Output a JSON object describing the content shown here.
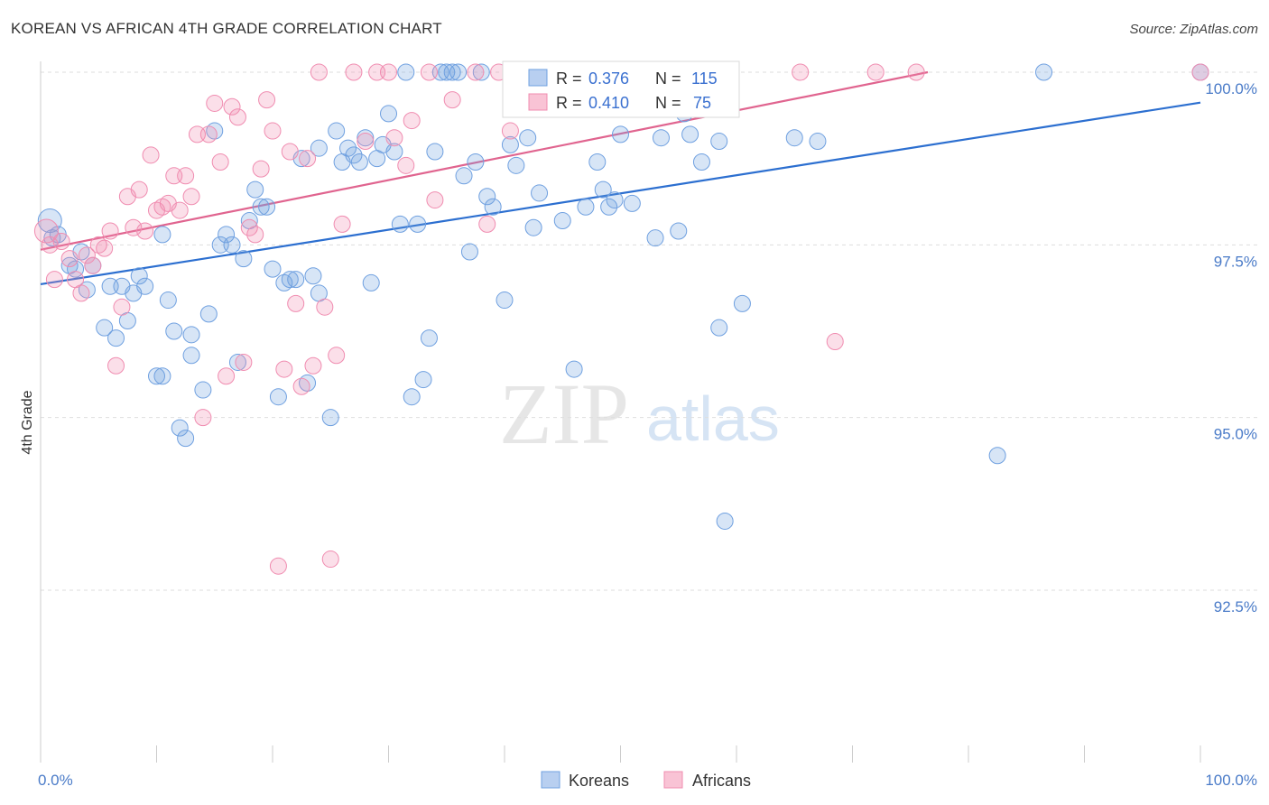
{
  "header": {
    "title": "KOREAN VS AFRICAN 4TH GRADE CORRELATION CHART",
    "source": "Source: ZipAtlas.com"
  },
  "watermark": {
    "zip": "ZIP",
    "atlas": "atlas"
  },
  "legend": {
    "rows": [
      {
        "r_label": "R =",
        "r_value": "0.376",
        "n_label": "N =",
        "n_value": "115",
        "color": "#6fa0e0"
      },
      {
        "r_label": "R =",
        "r_value": "0.410",
        "n_label": "N =",
        "n_value": "75",
        "color": "#f08cb0"
      }
    ]
  },
  "bottom_legend": [
    {
      "label": "Koreans",
      "color": "#6fa0e0"
    },
    {
      "label": "Africans",
      "color": "#f08cb0"
    }
  ],
  "chart_data": {
    "type": "scatter",
    "title": "KOREAN VS AFRICAN 4TH GRADE CORRELATION CHART",
    "xlabel": "",
    "ylabel": "4th Grade",
    "xlim": [
      0,
      100
    ],
    "ylim": [
      90.2,
      100.4
    ],
    "y_ticks": [
      {
        "value": 100.0,
        "label": "100.0%"
      },
      {
        "value": 97.5,
        "label": "97.5%"
      },
      {
        "value": 95.0,
        "label": "95.0%"
      },
      {
        "value": 92.5,
        "label": "92.5%"
      }
    ],
    "x_tick_labels": [
      {
        "value": 0,
        "label": "0.0%"
      },
      {
        "value": 100,
        "label": "100.0%"
      }
    ],
    "x_minor_ticks": [
      0,
      10,
      20,
      30,
      40,
      50,
      60,
      70,
      80,
      90,
      100
    ],
    "grid": "horizontal dashed",
    "series": [
      {
        "name": "Koreans",
        "color": "#6fa0e0",
        "trend": {
          "x": [
            0,
            100
          ],
          "y": [
            96.93,
            99.56
          ]
        },
        "points": [
          [
            0.8,
            97.85
          ],
          [
            1.0,
            97.6
          ],
          [
            1.5,
            97.65
          ],
          [
            2.5,
            97.2
          ],
          [
            3.0,
            97.15
          ],
          [
            3.5,
            97.4
          ],
          [
            4.0,
            96.85
          ],
          [
            4.5,
            97.2
          ],
          [
            5.5,
            96.3
          ],
          [
            6.0,
            96.9
          ],
          [
            6.5,
            96.15
          ],
          [
            7.0,
            96.9
          ],
          [
            7.5,
            96.4
          ],
          [
            8.0,
            96.8
          ],
          [
            8.5,
            97.05
          ],
          [
            9.0,
            96.9
          ],
          [
            10.0,
            95.6
          ],
          [
            10.5,
            97.65
          ],
          [
            10.5,
            95.6
          ],
          [
            11.0,
            96.7
          ],
          [
            11.5,
            96.25
          ],
          [
            12.0,
            94.85
          ],
          [
            12.5,
            94.7
          ],
          [
            13.0,
            95.9
          ],
          [
            13.0,
            96.2
          ],
          [
            14.0,
            95.4
          ],
          [
            14.5,
            96.5
          ],
          [
            15.0,
            99.15
          ],
          [
            15.5,
            97.5
          ],
          [
            16.0,
            97.65
          ],
          [
            16.5,
            97.5
          ],
          [
            17.0,
            95.8
          ],
          [
            17.5,
            97.3
          ],
          [
            18.0,
            97.85
          ],
          [
            18.5,
            98.3
          ],
          [
            19.0,
            98.05
          ],
          [
            19.5,
            98.05
          ],
          [
            20.0,
            97.15
          ],
          [
            20.5,
            95.3
          ],
          [
            21.0,
            96.95
          ],
          [
            21.5,
            97.0
          ],
          [
            22.0,
            97.0
          ],
          [
            22.5,
            98.75
          ],
          [
            23.0,
            95.5
          ],
          [
            23.5,
            97.05
          ],
          [
            24.0,
            96.8
          ],
          [
            24.0,
            98.9
          ],
          [
            25.0,
            95.0
          ],
          [
            25.5,
            99.15
          ],
          [
            26.0,
            98.7
          ],
          [
            26.5,
            98.9
          ],
          [
            27.0,
            98.8
          ],
          [
            27.5,
            98.7
          ],
          [
            28.0,
            99.05
          ],
          [
            28.5,
            96.95
          ],
          [
            29.0,
            98.75
          ],
          [
            29.5,
            98.95
          ],
          [
            30.0,
            99.4
          ],
          [
            30.5,
            98.85
          ],
          [
            31.0,
            97.8
          ],
          [
            31.5,
            100.0
          ],
          [
            32.0,
            95.3
          ],
          [
            32.5,
            97.8
          ],
          [
            33.0,
            95.55
          ],
          [
            33.5,
            96.15
          ],
          [
            34.0,
            98.85
          ],
          [
            34.5,
            100.0
          ],
          [
            35.0,
            100.0
          ],
          [
            35.5,
            100.0
          ],
          [
            36.0,
            100.0
          ],
          [
            36.5,
            98.5
          ],
          [
            37.0,
            97.4
          ],
          [
            37.5,
            98.7
          ],
          [
            38.0,
            100.0
          ],
          [
            38.5,
            98.2
          ],
          [
            39.0,
            98.05
          ],
          [
            40.0,
            96.7
          ],
          [
            40.5,
            98.95
          ],
          [
            41.0,
            98.65
          ],
          [
            42.0,
            99.05
          ],
          [
            42.5,
            97.75
          ],
          [
            43.0,
            98.25
          ],
          [
            45.0,
            97.85
          ],
          [
            45.5,
            100.0
          ],
          [
            46.0,
            95.7
          ],
          [
            47.0,
            98.05
          ],
          [
            48.0,
            98.7
          ],
          [
            48.5,
            98.3
          ],
          [
            49.0,
            98.05
          ],
          [
            49.5,
            98.15
          ],
          [
            50.0,
            99.1
          ],
          [
            50.5,
            100.0
          ],
          [
            51.0,
            98.1
          ],
          [
            53.0,
            97.6
          ],
          [
            53.5,
            99.05
          ],
          [
            55.0,
            97.7
          ],
          [
            55.5,
            99.4
          ],
          [
            56.0,
            99.1
          ],
          [
            57.0,
            98.7
          ],
          [
            58.5,
            99.0
          ],
          [
            58.5,
            96.3
          ],
          [
            59.0,
            93.5
          ],
          [
            60.5,
            96.65
          ],
          [
            65.0,
            99.05
          ],
          [
            67.0,
            99.0
          ],
          [
            82.5,
            94.45
          ],
          [
            86.5,
            100.0
          ],
          [
            100.0,
            100.0
          ]
        ]
      },
      {
        "name": "Africans",
        "color": "#f08cb0",
        "trend": {
          "x": [
            0,
            76.5
          ],
          "y": [
            97.43,
            100.0
          ]
        },
        "points": [
          [
            0.5,
            97.7
          ],
          [
            0.8,
            97.5
          ],
          [
            1.2,
            97.0
          ],
          [
            1.8,
            97.55
          ],
          [
            2.5,
            97.3
          ],
          [
            3.0,
            97.0
          ],
          [
            3.5,
            96.8
          ],
          [
            4.0,
            97.35
          ],
          [
            4.5,
            97.2
          ],
          [
            5.0,
            97.5
          ],
          [
            5.5,
            97.45
          ],
          [
            6.0,
            97.7
          ],
          [
            6.5,
            95.75
          ],
          [
            7.0,
            96.6
          ],
          [
            7.5,
            98.2
          ],
          [
            8.0,
            97.75
          ],
          [
            8.5,
            98.3
          ],
          [
            9.0,
            97.7
          ],
          [
            9.5,
            98.8
          ],
          [
            10.0,
            98.0
          ],
          [
            10.5,
            98.05
          ],
          [
            11.0,
            98.1
          ],
          [
            11.5,
            98.5
          ],
          [
            12.0,
            98.0
          ],
          [
            12.5,
            98.5
          ],
          [
            13.0,
            98.2
          ],
          [
            13.5,
            99.1
          ],
          [
            14.0,
            95.0
          ],
          [
            14.5,
            99.1
          ],
          [
            15.0,
            99.55
          ],
          [
            15.5,
            98.7
          ],
          [
            16.0,
            95.6
          ],
          [
            16.5,
            99.5
          ],
          [
            17.0,
            99.35
          ],
          [
            17.5,
            95.8
          ],
          [
            18.0,
            97.75
          ],
          [
            18.5,
            97.65
          ],
          [
            19.0,
            98.6
          ],
          [
            19.5,
            99.6
          ],
          [
            20.0,
            99.15
          ],
          [
            20.5,
            92.85
          ],
          [
            21.0,
            95.7
          ],
          [
            21.5,
            98.85
          ],
          [
            22.0,
            96.65
          ],
          [
            22.5,
            95.45
          ],
          [
            23.0,
            98.75
          ],
          [
            23.5,
            95.75
          ],
          [
            24.0,
            100.0
          ],
          [
            24.5,
            96.6
          ],
          [
            25.0,
            92.95
          ],
          [
            25.5,
            95.9
          ],
          [
            26.0,
            97.8
          ],
          [
            27.0,
            100.0
          ],
          [
            28.0,
            99.0
          ],
          [
            29.0,
            100.0
          ],
          [
            30.0,
            100.0
          ],
          [
            30.5,
            99.05
          ],
          [
            31.5,
            98.65
          ],
          [
            32.0,
            99.3
          ],
          [
            33.5,
            100.0
          ],
          [
            34.0,
            98.15
          ],
          [
            35.5,
            99.6
          ],
          [
            37.5,
            100.0
          ],
          [
            38.5,
            97.8
          ],
          [
            39.5,
            100.0
          ],
          [
            40.5,
            99.15
          ],
          [
            43.0,
            100.0
          ],
          [
            46.5,
            100.0
          ],
          [
            54.0,
            100.0
          ],
          [
            65.5,
            100.0
          ],
          [
            68.5,
            96.1
          ],
          [
            72.0,
            100.0
          ],
          [
            75.5,
            100.0
          ],
          [
            100.0,
            100.0
          ]
        ]
      }
    ]
  }
}
